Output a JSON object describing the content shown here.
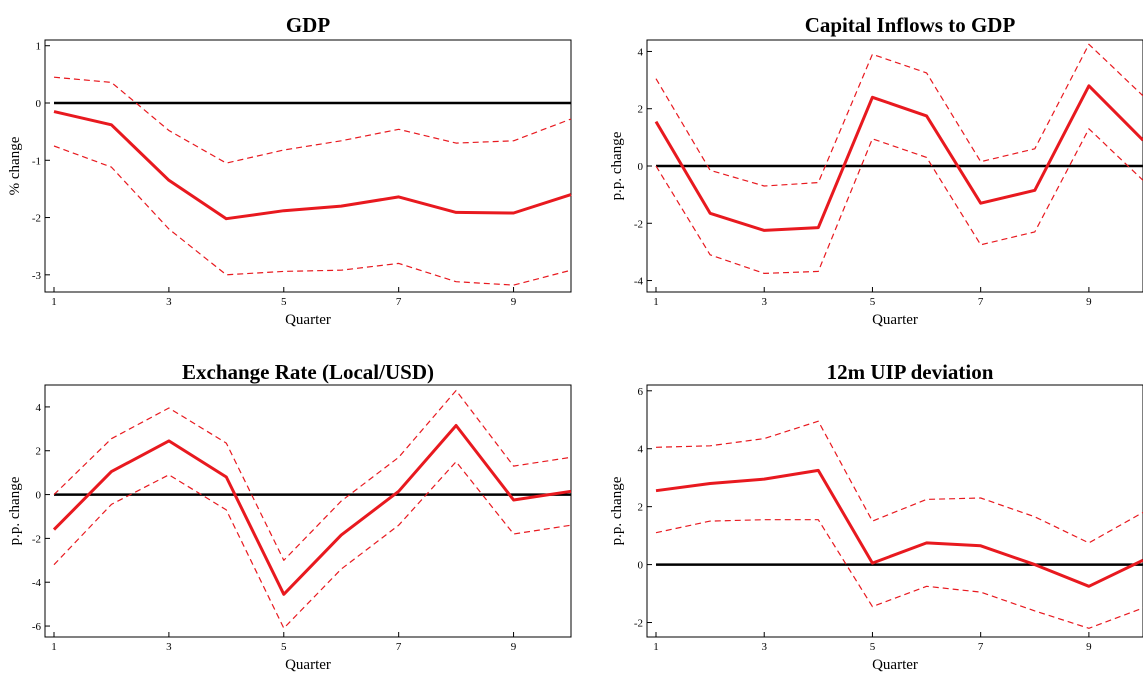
{
  "chart_data": [
    {
      "type": "line",
      "title": "GDP",
      "xlabel": "Quarter",
      "ylabel": "% change",
      "x": [
        1,
        2,
        3,
        4,
        5,
        6,
        7,
        8,
        9,
        10
      ],
      "x_ticks": [
        1,
        3,
        5,
        7,
        9
      ],
      "y_ticks": [
        1,
        0,
        -1,
        -2,
        -3
      ],
      "xlim": [
        1,
        10
      ],
      "ylim": [
        -3.3,
        1.1
      ],
      "grid": false,
      "series": [
        {
          "role": "lower band",
          "style": "dashed",
          "color": "#e8191f",
          "values": [
            -0.75,
            -1.12,
            -2.2,
            -3.0,
            -2.94,
            -2.92,
            -2.8,
            -3.12,
            -3.18,
            -2.92
          ]
        },
        {
          "role": "estimate",
          "style": "solid",
          "color": "#e8191f",
          "values": [
            -0.15,
            -0.38,
            -1.35,
            -2.02,
            -1.88,
            -1.8,
            -1.64,
            -1.91,
            -1.92,
            -1.6
          ]
        },
        {
          "role": "upper band",
          "style": "dashed",
          "color": "#e8191f",
          "values": [
            0.45,
            0.36,
            -0.48,
            -1.05,
            -0.82,
            -0.66,
            -0.46,
            -0.7,
            -0.66,
            -0.28
          ]
        },
        {
          "role": "zero line",
          "style": "solid",
          "color": "#000000",
          "values": [
            0,
            0,
            0,
            0,
            0,
            0,
            0,
            0,
            0,
            0
          ]
        }
      ]
    },
    {
      "type": "line",
      "title": "Capital Inflows to GDP",
      "xlabel": "Quarter",
      "ylabel": "p.p. change",
      "x": [
        1,
        2,
        3,
        4,
        5,
        6,
        7,
        8,
        9,
        10
      ],
      "x_ticks": [
        1,
        3,
        5,
        7,
        9
      ],
      "y_ticks": [
        4,
        2,
        0,
        -2,
        -4
      ],
      "xlim": [
        1,
        10
      ],
      "ylim": [
        -4.4,
        4.4
      ],
      "grid": false,
      "series": [
        {
          "role": "lower band",
          "style": "dashed",
          "color": "#e8191f",
          "values": [
            0.0,
            -3.1,
            -3.75,
            -3.68,
            0.95,
            0.3,
            -2.75,
            -2.3,
            1.3,
            -0.5
          ]
        },
        {
          "role": "estimate",
          "style": "solid",
          "color": "#e8191f",
          "values": [
            1.55,
            -1.65,
            -2.25,
            -2.15,
            2.4,
            1.75,
            -1.3,
            -0.85,
            2.8,
            0.9
          ]
        },
        {
          "role": "upper band",
          "style": "dashed",
          "color": "#e8191f",
          "values": [
            3.05,
            -0.15,
            -0.7,
            -0.58,
            3.9,
            3.25,
            0.15,
            0.6,
            4.25,
            2.45
          ]
        },
        {
          "role": "zero line",
          "style": "solid",
          "color": "#000000",
          "values": [
            0,
            0,
            0,
            0,
            0,
            0,
            0,
            0,
            0,
            0
          ]
        }
      ]
    },
    {
      "type": "line",
      "title": "Exchange Rate (Local/USD)",
      "xlabel": "Quarter",
      "ylabel": "p.p. change",
      "x": [
        1,
        2,
        3,
        4,
        5,
        6,
        7,
        8,
        9,
        10
      ],
      "x_ticks": [
        1,
        3,
        5,
        7,
        9
      ],
      "y_ticks": [
        4,
        2,
        0,
        -2,
        -4,
        -6
      ],
      "xlim": [
        1,
        10
      ],
      "ylim": [
        -6.5,
        5.0
      ],
      "grid": false,
      "series": [
        {
          "role": "lower band",
          "style": "dashed",
          "color": "#e8191f",
          "values": [
            -3.2,
            -0.45,
            0.9,
            -0.7,
            -6.1,
            -3.4,
            -1.4,
            1.5,
            -1.8,
            -1.4
          ]
        },
        {
          "role": "estimate",
          "style": "solid",
          "color": "#e8191f",
          "values": [
            -1.6,
            1.05,
            2.45,
            0.8,
            -4.55,
            -1.85,
            0.15,
            3.15,
            -0.25,
            0.15
          ]
        },
        {
          "role": "upper band",
          "style": "dashed",
          "color": "#e8191f",
          "values": [
            0.0,
            2.55,
            3.95,
            2.35,
            -3.0,
            -0.3,
            1.7,
            4.75,
            1.3,
            1.7
          ]
        },
        {
          "role": "zero line",
          "style": "solid",
          "color": "#000000",
          "values": [
            0,
            0,
            0,
            0,
            0,
            0,
            0,
            0,
            0,
            0
          ]
        }
      ]
    },
    {
      "type": "line",
      "title": "12m UIP deviation",
      "xlabel": "Quarter",
      "ylabel": "p.p. change",
      "x": [
        1,
        2,
        3,
        4,
        5,
        6,
        7,
        8,
        9,
        10
      ],
      "x_ticks": [
        1,
        3,
        5,
        7,
        9
      ],
      "y_ticks": [
        6,
        4,
        2,
        0,
        -2
      ],
      "xlim": [
        1,
        10
      ],
      "ylim": [
        -2.5,
        6.2
      ],
      "grid": false,
      "series": [
        {
          "role": "lower band",
          "style": "dashed",
          "color": "#e8191f",
          "values": [
            1.1,
            1.5,
            1.55,
            1.55,
            -1.45,
            -0.75,
            -0.95,
            -1.6,
            -2.2,
            -1.5
          ]
        },
        {
          "role": "estimate",
          "style": "solid",
          "color": "#e8191f",
          "values": [
            2.55,
            2.8,
            2.95,
            3.25,
            0.05,
            0.75,
            0.65,
            0.0,
            -0.75,
            0.15
          ]
        },
        {
          "role": "upper band",
          "style": "dashed",
          "color": "#e8191f",
          "values": [
            4.05,
            4.1,
            4.35,
            4.95,
            1.5,
            2.25,
            2.3,
            1.65,
            0.75,
            1.8
          ]
        },
        {
          "role": "zero line",
          "style": "solid",
          "color": "#000000",
          "values": [
            0,
            0,
            0,
            0,
            0,
            0,
            0,
            0,
            0,
            0
          ]
        }
      ]
    }
  ]
}
